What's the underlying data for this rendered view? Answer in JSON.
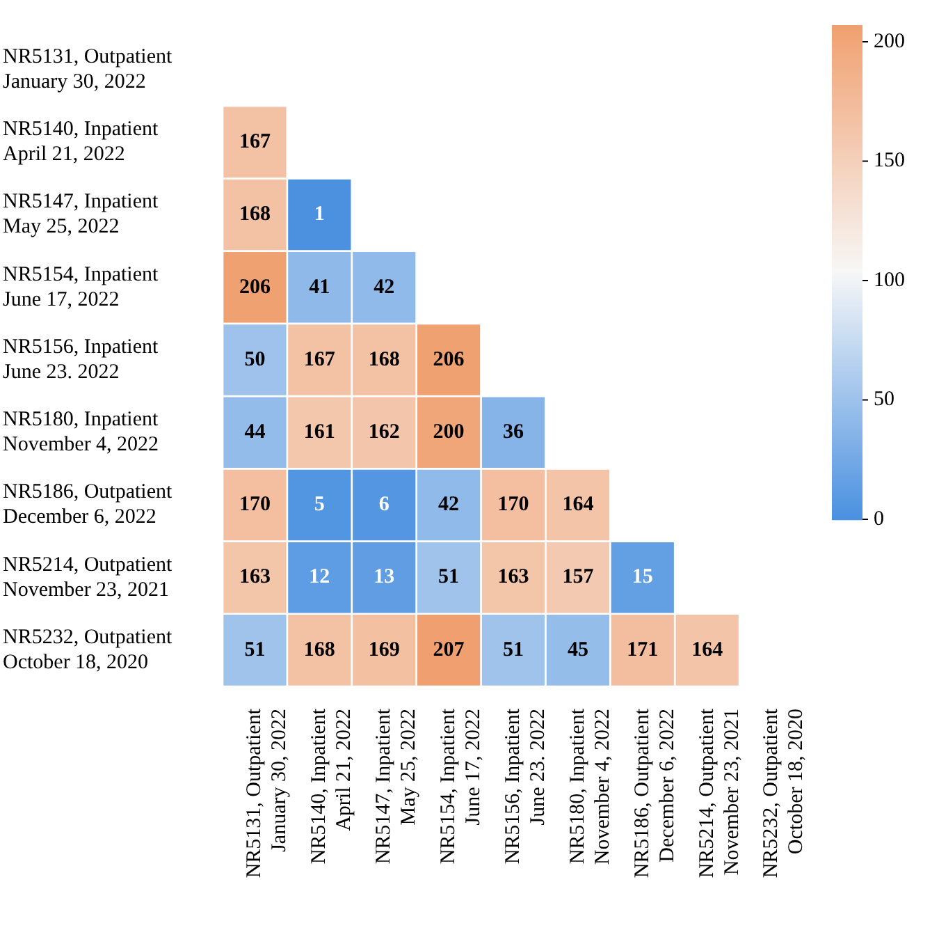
{
  "chart_data": {
    "type": "heatmap",
    "categories": [
      "NR5131, Outpatient January 30, 2022",
      "NR5140, Inpatient April 21, 2022",
      "NR5147, Inpatient May 25, 2022",
      "NR5154, Inpatient June 17, 2022",
      "NR5156, Inpatient June 23. 2022",
      "NR5180, Inpatient November 4, 2022",
      "NR5186, Outpatient December 6, 2022",
      "NR5214, Outpatient November 23, 2021",
      "NR5232, Outpatient October 18, 2020"
    ],
    "y_categories": [
      "NR5131, Outpatient January 30, 2022",
      "NR5140, Inpatient April 21, 2022",
      "NR5147, Inpatient May 25, 2022",
      "NR5154, Inpatient June 17, 2022",
      "NR5156, Inpatient June 23. 2022",
      "NR5180, Inpatient November 4, 2022",
      "NR5186, Outpatient December 6, 2022",
      "NR5214, Outpatient November 23, 2021",
      "NR5232, Outpatient October 18, 2020"
    ],
    "cells": [
      [
        null,
        null,
        null,
        null,
        null,
        null,
        null,
        null,
        null
      ],
      [
        167,
        null,
        null,
        null,
        null,
        null,
        null,
        null,
        null
      ],
      [
        168,
        1,
        null,
        null,
        null,
        null,
        null,
        null,
        null
      ],
      [
        206,
        41,
        42,
        null,
        null,
        null,
        null,
        null,
        null
      ],
      [
        50,
        167,
        168,
        206,
        null,
        null,
        null,
        null,
        null
      ],
      [
        44,
        161,
        162,
        200,
        36,
        null,
        null,
        null,
        null
      ],
      [
        170,
        5,
        6,
        42,
        170,
        164,
        null,
        null,
        null
      ],
      [
        163,
        12,
        13,
        51,
        163,
        157,
        15,
        null,
        null
      ],
      [
        51,
        168,
        169,
        207,
        51,
        45,
        171,
        164,
        null
      ]
    ],
    "clim": [
      0,
      207
    ],
    "cticks": [
      0,
      50,
      100,
      150,
      200
    ],
    "data_labels": true
  }
}
